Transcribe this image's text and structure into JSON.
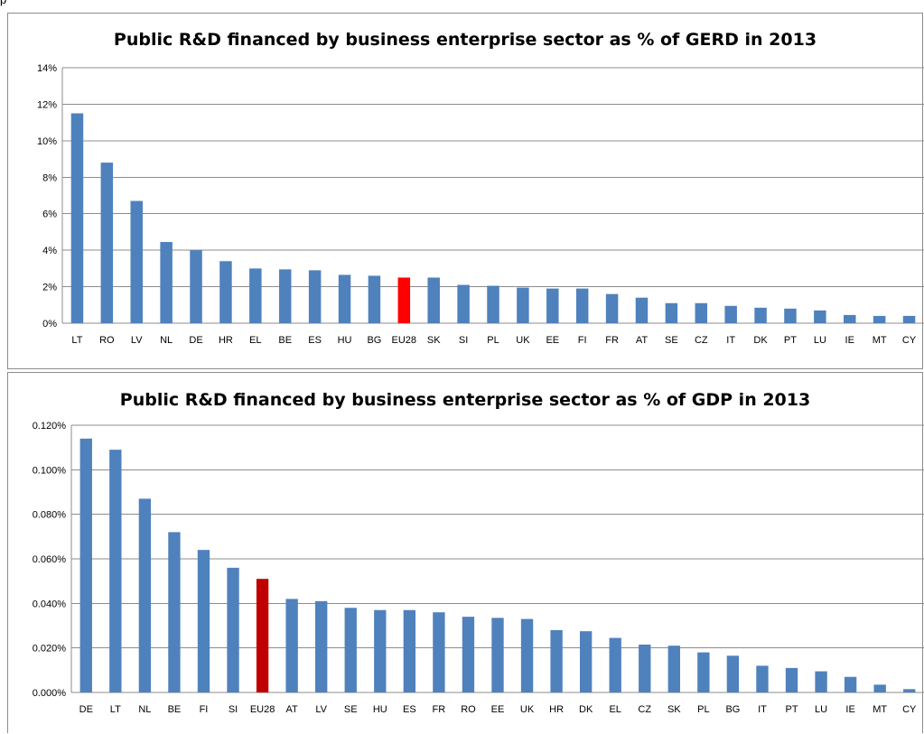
{
  "top_fragment": "p",
  "chart_data": [
    {
      "type": "bar",
      "title": "Public R&D financed by business enterprise sector as % of GERD in 2013",
      "xlabel": "",
      "ylabel": "",
      "ylim": [
        0,
        14
      ],
      "yticks": [
        0,
        2,
        4,
        6,
        8,
        10,
        12,
        14
      ],
      "ytick_labels": [
        "0%",
        "2%",
        "4%",
        "6%",
        "8%",
        "10%",
        "12%",
        "14%"
      ],
      "grid": true,
      "legend": "none",
      "categories": [
        "LT",
        "RO",
        "LV",
        "NL",
        "DE",
        "HR",
        "EL",
        "BE",
        "ES",
        "HU",
        "BG",
        "EU28",
        "SK",
        "SI",
        "PL",
        "UK",
        "EE",
        "FI",
        "FR",
        "AT",
        "SE",
        "CZ",
        "IT",
        "DK",
        "PT",
        "LU",
        "IE",
        "MT",
        "CY"
      ],
      "values": [
        11.5,
        8.8,
        6.7,
        4.45,
        4.0,
        3.4,
        3.0,
        2.95,
        2.9,
        2.65,
        2.6,
        2.5,
        2.5,
        2.1,
        2.05,
        1.95,
        1.9,
        1.9,
        1.6,
        1.4,
        1.1,
        1.1,
        0.95,
        0.85,
        0.8,
        0.7,
        0.45,
        0.4,
        0.4
      ],
      "colors": {
        "default": "#4f81bd",
        "highlight": "#ff0000",
        "highlight_category": "EU28",
        "grid": "#8c8c8c"
      }
    },
    {
      "type": "bar",
      "title": "Public R&D financed by business enterprise sector as % of GDP in 2013",
      "xlabel": "",
      "ylabel": "",
      "ylim": [
        0,
        0.12
      ],
      "yticks": [
        0,
        0.02,
        0.04,
        0.06,
        0.08,
        0.1,
        0.12
      ],
      "ytick_labels": [
        "0.000%",
        "0.020%",
        "0.040%",
        "0.060%",
        "0.080%",
        "0.100%",
        "0.120%"
      ],
      "grid": true,
      "legend": "none",
      "categories": [
        "DE",
        "LT",
        "NL",
        "BE",
        "FI",
        "SI",
        "EU28",
        "AT",
        "LV",
        "SE",
        "HU",
        "ES",
        "FR",
        "RO",
        "EE",
        "UK",
        "HR",
        "DK",
        "EL",
        "CZ",
        "SK",
        "PL",
        "BG",
        "IT",
        "PT",
        "LU",
        "IE",
        "MT",
        "CY"
      ],
      "values": [
        0.114,
        0.109,
        0.087,
        0.072,
        0.064,
        0.056,
        0.051,
        0.042,
        0.041,
        0.038,
        0.037,
        0.037,
        0.036,
        0.034,
        0.0335,
        0.033,
        0.028,
        0.0275,
        0.0245,
        0.0215,
        0.021,
        0.018,
        0.0165,
        0.012,
        0.011,
        0.0095,
        0.007,
        0.0035,
        0.0015
      ],
      "colors": {
        "default": "#4f81bd",
        "highlight": "#c00000",
        "highlight_category": "EU28",
        "grid": "#8c8c8c"
      }
    }
  ]
}
